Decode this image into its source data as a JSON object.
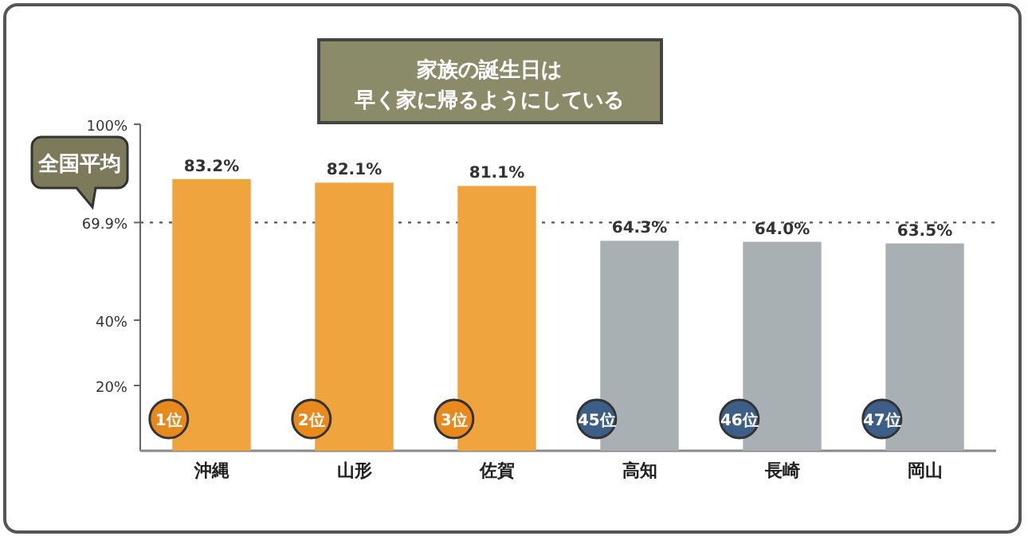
{
  "chart_data": {
    "type": "bar",
    "title": "家族の誕生日は",
    "subtitle": "早く家に帰るようにしている",
    "categories": [
      "沖縄",
      "山形",
      "佐賀",
      "高知",
      "長崎",
      "岡山"
    ],
    "values": [
      83.2,
      82.1,
      81.1,
      64.3,
      64.0,
      63.5
    ],
    "colors": [
      "#f0a43e",
      "#f0a43e",
      "#f0a43e",
      "#a9b0b4",
      "#a9b0b4",
      "#a9b0b4"
    ],
    "value_labels": [
      "83.2%",
      "82.1%",
      "81.1%",
      "64.3%",
      "64.0%",
      "63.5%"
    ],
    "ylim": [
      0,
      100
    ],
    "yticks": [
      {
        "value": 20,
        "label": "20%"
      },
      {
        "value": 40,
        "label": "40%"
      },
      {
        "value": 69.9,
        "label": "69.9%"
      },
      {
        "value": 100,
        "label": "100%"
      }
    ],
    "ref_lines": [
      {
        "axis": "y",
        "value": 69.9,
        "label": "全国平均",
        "color": "#555555",
        "line_style": "dotted"
      }
    ],
    "annotations": [
      "1位",
      "2位",
      "3位",
      "45位",
      "46位",
      "47位"
    ],
    "grid": false
  }
}
